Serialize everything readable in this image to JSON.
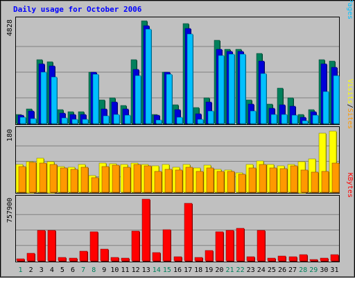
{
  "chart_data": [
    {
      "type": "bar",
      "title": "Daily usage for October 2006",
      "categories": [
        "1",
        "2",
        "3",
        "4",
        "5",
        "6",
        "7",
        "8",
        "9",
        "10",
        "11",
        "12",
        "13",
        "14",
        "15",
        "16",
        "17",
        "18",
        "19",
        "20",
        "21",
        "22",
        "23",
        "24",
        "25",
        "26",
        "27",
        "28",
        "29",
        "30",
        "31"
      ],
      "weekend_days": [
        "1",
        "7",
        "8",
        "14",
        "15",
        "21",
        "22",
        "28",
        "29"
      ],
      "ymax_label": "4828",
      "ylim": [
        0,
        4828
      ],
      "grid": true,
      "legend_labels": [
        "Pages",
        "Files",
        "Hits"
      ],
      "series": [
        {
          "name": "Hits",
          "color": "#00805c",
          "values": [
            420,
            700,
            3000,
            2900,
            650,
            560,
            560,
            2400,
            1100,
            1200,
            850,
            3000,
            4828,
            420,
            2400,
            870,
            4700,
            740,
            1200,
            3900,
            3500,
            3500,
            1100,
            3300,
            900,
            1650,
            1200,
            420,
            640,
            3000,
            2950
          ]
        },
        {
          "name": "Files",
          "color": "#0000d8",
          "values": [
            380,
            600,
            2800,
            2700,
            500,
            440,
            440,
            2400,
            700,
            1000,
            700,
            2550,
            4600,
            380,
            2400,
            640,
            4470,
            450,
            1000,
            3500,
            3400,
            3400,
            900,
            2950,
            710,
            880,
            800,
            300,
            560,
            2800,
            2650
          ]
        },
        {
          "name": "Pages",
          "color": "#00c0ff",
          "values": [
            300,
            220,
            2400,
            2200,
            260,
            190,
            190,
            2300,
            360,
            420,
            380,
            2250,
            4450,
            170,
            2300,
            290,
            4200,
            200,
            600,
            3200,
            3250,
            3250,
            600,
            2350,
            420,
            420,
            400,
            140,
            390,
            1500,
            2250
          ]
        }
      ]
    },
    {
      "type": "bar",
      "ymax_label": "180",
      "ylim": [
        0,
        180
      ],
      "grid": true,
      "legend_labels": [
        "Sites",
        "Visits"
      ],
      "series": [
        {
          "name": "Visits",
          "color": "#ffff00",
          "values": [
            80,
            90,
            100,
            90,
            75,
            72,
            80,
            48,
            84,
            82,
            80,
            84,
            80,
            76,
            80,
            72,
            80,
            70,
            78,
            66,
            64,
            56,
            80,
            92,
            80,
            76,
            80,
            90,
            98,
            172,
            178
          ]
        },
        {
          "name": "Sites",
          "color": "#ff9900",
          "values": [
            74,
            87,
            84,
            80,
            70,
            66,
            72,
            42,
            74,
            78,
            72,
            80,
            76,
            60,
            66,
            64,
            72,
            60,
            70,
            60,
            60,
            52,
            70,
            80,
            70,
            68,
            76,
            64,
            58,
            60,
            85
          ]
        }
      ]
    },
    {
      "type": "bar",
      "ymax_label": "757900",
      "ylim": [
        0,
        757900
      ],
      "grid": true,
      "legend_labels": [
        "KBytes"
      ],
      "series": [
        {
          "name": "KBytes",
          "color": "#ff0000",
          "values": [
            28000,
            90000,
            375000,
            375000,
            40000,
            35000,
            120000,
            360000,
            145000,
            40000,
            35000,
            365000,
            757900,
            105000,
            385000,
            55000,
            710000,
            45000,
            125000,
            360000,
            375000,
            400000,
            48000,
            375000,
            30000,
            60000,
            50000,
            80000,
            20000,
            35000,
            75000
          ]
        }
      ]
    }
  ]
}
